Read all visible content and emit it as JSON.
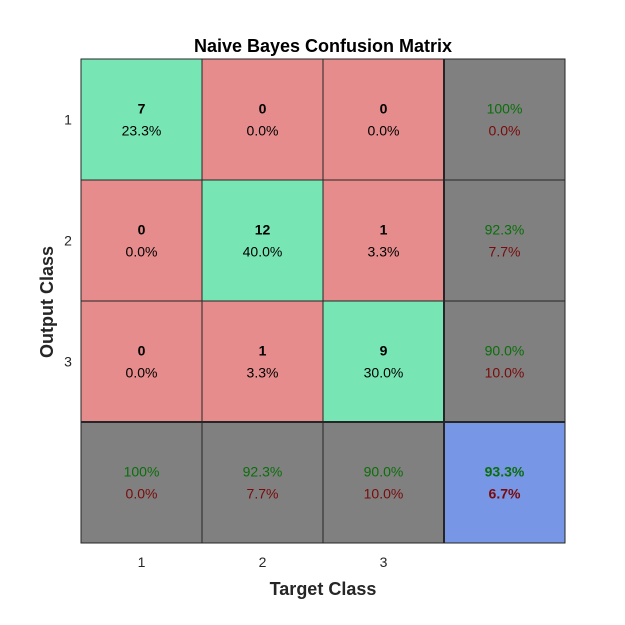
{
  "chart_data": {
    "type": "heatmap",
    "title": "Naive Bayes Confusion Matrix",
    "xlabel": "Target Class",
    "ylabel": "Output Class",
    "x_tick_labels": [
      "1",
      "2",
      "3"
    ],
    "y_tick_labels": [
      "1",
      "2",
      "3"
    ],
    "cells": [
      [
        {
          "count": "7",
          "pct": "23.3%"
        },
        {
          "count": "0",
          "pct": "0.0%"
        },
        {
          "count": "0",
          "pct": "0.0%"
        }
      ],
      [
        {
          "count": "0",
          "pct": "0.0%"
        },
        {
          "count": "12",
          "pct": "40.0%"
        },
        {
          "count": "1",
          "pct": "3.3%"
        }
      ],
      [
        {
          "count": "0",
          "pct": "0.0%"
        },
        {
          "count": "1",
          "pct": "3.3%"
        },
        {
          "count": "9",
          "pct": "30.0%"
        }
      ]
    ],
    "row_summary": [
      {
        "correct": "100%",
        "error": "0.0%"
      },
      {
        "correct": "92.3%",
        "error": "7.7%"
      },
      {
        "correct": "90.0%",
        "error": "10.0%"
      }
    ],
    "column_summary": [
      {
        "correct": "100%",
        "error": "0.0%"
      },
      {
        "correct": "92.3%",
        "error": "7.7%"
      },
      {
        "correct": "90.0%",
        "error": "10.0%"
      }
    ],
    "overall": {
      "correct": "93.3%",
      "error": "6.7%"
    },
    "colors": {
      "correct_cell": "#78e6b4",
      "incorrect_cell": "#e68c8c",
      "summary_cell": "#808080",
      "overall_cell": "#7896e6",
      "correct_text": "#0a6e0a",
      "error_text": "#7a0a0a"
    }
  }
}
